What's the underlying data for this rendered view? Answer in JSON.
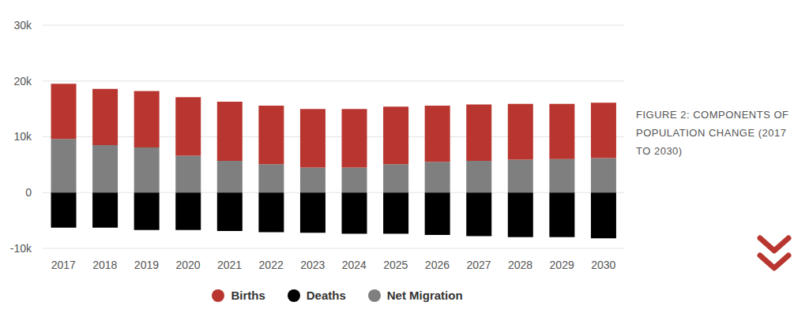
{
  "chart_data": {
    "type": "bar",
    "title": "FIGURE 2: COMPONENTS OF POPULATION CHANGE (2017 TO 2030)",
    "categories": [
      "2017",
      "2018",
      "2019",
      "2020",
      "2021",
      "2022",
      "2023",
      "2024",
      "2025",
      "2026",
      "2027",
      "2028",
      "2029",
      "2030"
    ],
    "series": [
      {
        "name": "Births",
        "color": "#b8362f",
        "values": [
          9900,
          10100,
          10100,
          10500,
          10600,
          10500,
          10500,
          10500,
          10300,
          10100,
          10100,
          10000,
          9900,
          9900
        ]
      },
      {
        "name": "Deaths",
        "color": "#000000",
        "values": [
          -6300,
          -6300,
          -6700,
          -6700,
          -6900,
          -7100,
          -7200,
          -7400,
          -7400,
          -7600,
          -7800,
          -8000,
          -8000,
          -8200
        ]
      },
      {
        "name": "Net Migration",
        "color": "#7f7f7f",
        "values": [
          9600,
          8500,
          8100,
          6600,
          5700,
          5100,
          4500,
          4500,
          5100,
          5500,
          5700,
          5900,
          6000,
          6200
        ]
      }
    ],
    "stacked": true,
    "ylim": [
      -10000,
      30000
    ],
    "yticks": [
      {
        "value": -10000,
        "label": "-10k"
      },
      0,
      {
        "value": 10000,
        "label": "10k"
      },
      {
        "value": 20000,
        "label": "20k"
      },
      {
        "value": 30000,
        "label": "30k"
      }
    ],
    "grid": true,
    "legend": "bottom"
  }
}
